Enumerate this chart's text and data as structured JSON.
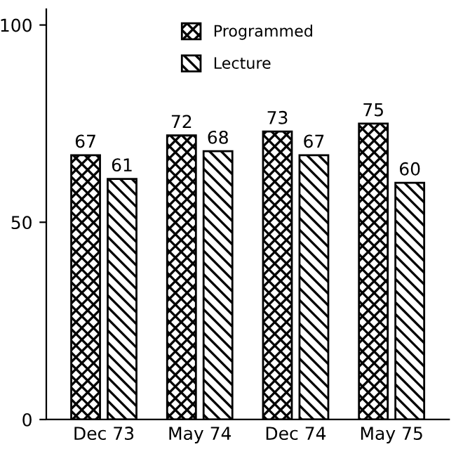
{
  "chart_data": {
    "type": "bar",
    "categories": [
      "Dec 73",
      "May 74",
      "Dec 74",
      "May 75"
    ],
    "series": [
      {
        "name": "Programmed",
        "color": "#000000",
        "values": [
          67,
          72,
          73,
          75
        ]
      },
      {
        "name": "Lecture",
        "color": "#000000",
        "values": [
          61,
          68,
          67,
          60
        ]
      }
    ],
    "ylim": [
      0,
      104
    ],
    "yticks": [
      0,
      50,
      100
    ],
    "data_labels": true,
    "legend": "top",
    "grid": false
  }
}
